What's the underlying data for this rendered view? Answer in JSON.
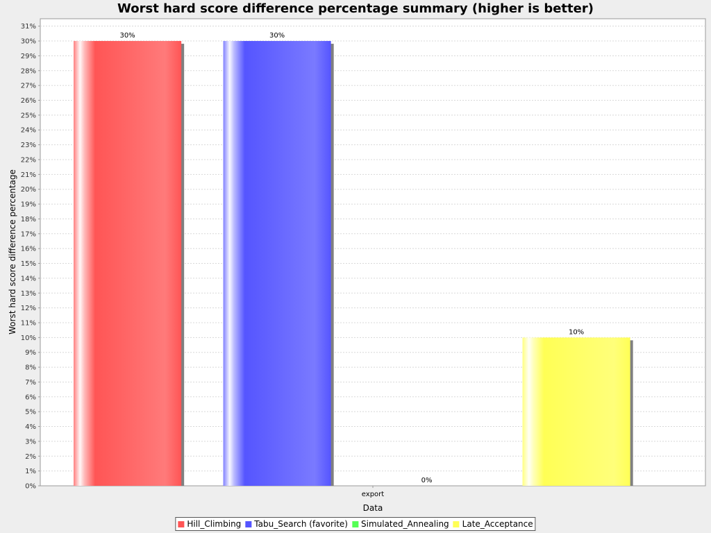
{
  "chart_data": {
    "type": "bar",
    "title": "Worst hard score difference percentage summary (higher is better)",
    "xlabel": "Data",
    "ylabel": "Worst hard score difference percentage",
    "categories": [
      "export"
    ],
    "ylim": [
      0,
      31.5
    ],
    "ytick_step": 1,
    "tick_suffix": "%",
    "grid": true,
    "legend": "bottom",
    "series": [
      {
        "name": "Hill_Climbing",
        "values": [
          30
        ],
        "label": "30%",
        "color": "#ff5555"
      },
      {
        "name": "Tabu_Search (favorite)",
        "values": [
          30
        ],
        "label": "30%",
        "color": "#5555ff"
      },
      {
        "name": "Simulated_Annealing",
        "values": [
          0
        ],
        "label": "0%",
        "color": "#55ff55"
      },
      {
        "name": "Late_Acceptance",
        "values": [
          10
        ],
        "label": "10%",
        "color": "#ffff55"
      }
    ]
  }
}
